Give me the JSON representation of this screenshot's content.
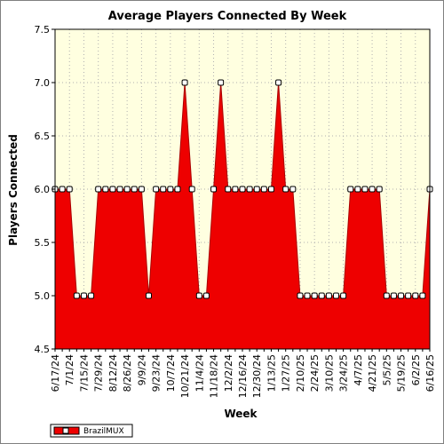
{
  "chart_data": {
    "type": "area",
    "title": "Average Players Connected By Week",
    "xlabel": "Week",
    "ylabel": "Players Connected",
    "ylim": [
      4.5,
      7.5
    ],
    "yticks": [
      "4.5",
      "5.0",
      "5.5",
      "6.0",
      "6.5",
      "7.0",
      "7.5"
    ],
    "grid": true,
    "legend_position": "bottom-left",
    "colors": {
      "fill": "#ee0000",
      "line": "#aa0000",
      "plot_bg": "#ffffe0",
      "grid": "#b0b0b0"
    },
    "x": [
      "6/17/24",
      "6/24/24",
      "7/1/24",
      "7/8/24",
      "7/15/24",
      "7/22/24",
      "7/29/24",
      "8/5/24",
      "8/12/24",
      "8/19/24",
      "8/26/24",
      "9/2/24",
      "9/9/24",
      "9/16/24",
      "9/23/24",
      "9/30/24",
      "10/7/24",
      "10/14/24",
      "10/21/24",
      "10/28/24",
      "11/4/24",
      "11/11/24",
      "11/18/24",
      "11/25/24",
      "12/2/24",
      "12/9/24",
      "12/16/24",
      "12/23/24",
      "12/30/24",
      "1/6/25",
      "1/13/25",
      "1/20/25",
      "1/27/25",
      "2/3/25",
      "2/10/25",
      "2/17/25",
      "2/24/25",
      "3/3/25",
      "3/10/25",
      "3/17/25",
      "3/24/25",
      "3/31/25",
      "4/7/25",
      "4/14/25",
      "4/21/25",
      "4/28/25",
      "5/5/25",
      "5/12/25",
      "5/19/25",
      "5/26/25",
      "6/2/25",
      "6/9/25",
      "6/16/25"
    ],
    "xtick_labels": [
      "6/17/24",
      "7/1/24",
      "7/15/24",
      "7/29/24",
      "8/12/24",
      "8/26/24",
      "9/9/24",
      "9/23/24",
      "10/7/24",
      "10/21/24",
      "11/4/24",
      "11/18/24",
      "12/2/24",
      "12/16/24",
      "12/30/24",
      "1/13/25",
      "1/27/25",
      "2/10/25",
      "2/24/25",
      "3/10/25",
      "3/24/25",
      "4/7/25",
      "4/21/25",
      "5/5/25",
      "5/19/25",
      "6/2/25",
      "6/16/25"
    ],
    "series": [
      {
        "name": "BrazilMUX",
        "values": [
          6,
          6,
          6,
          5,
          5,
          5,
          6,
          6,
          6,
          6,
          6,
          6,
          6,
          5,
          6,
          6,
          6,
          6,
          7,
          6,
          5,
          5,
          6,
          7,
          6,
          6,
          6,
          6,
          6,
          6,
          6,
          7,
          6,
          6,
          5,
          5,
          5,
          5,
          5,
          5,
          5,
          6,
          6,
          6,
          6,
          6,
          5,
          5,
          5,
          5,
          5,
          5,
          6
        ]
      }
    ]
  }
}
